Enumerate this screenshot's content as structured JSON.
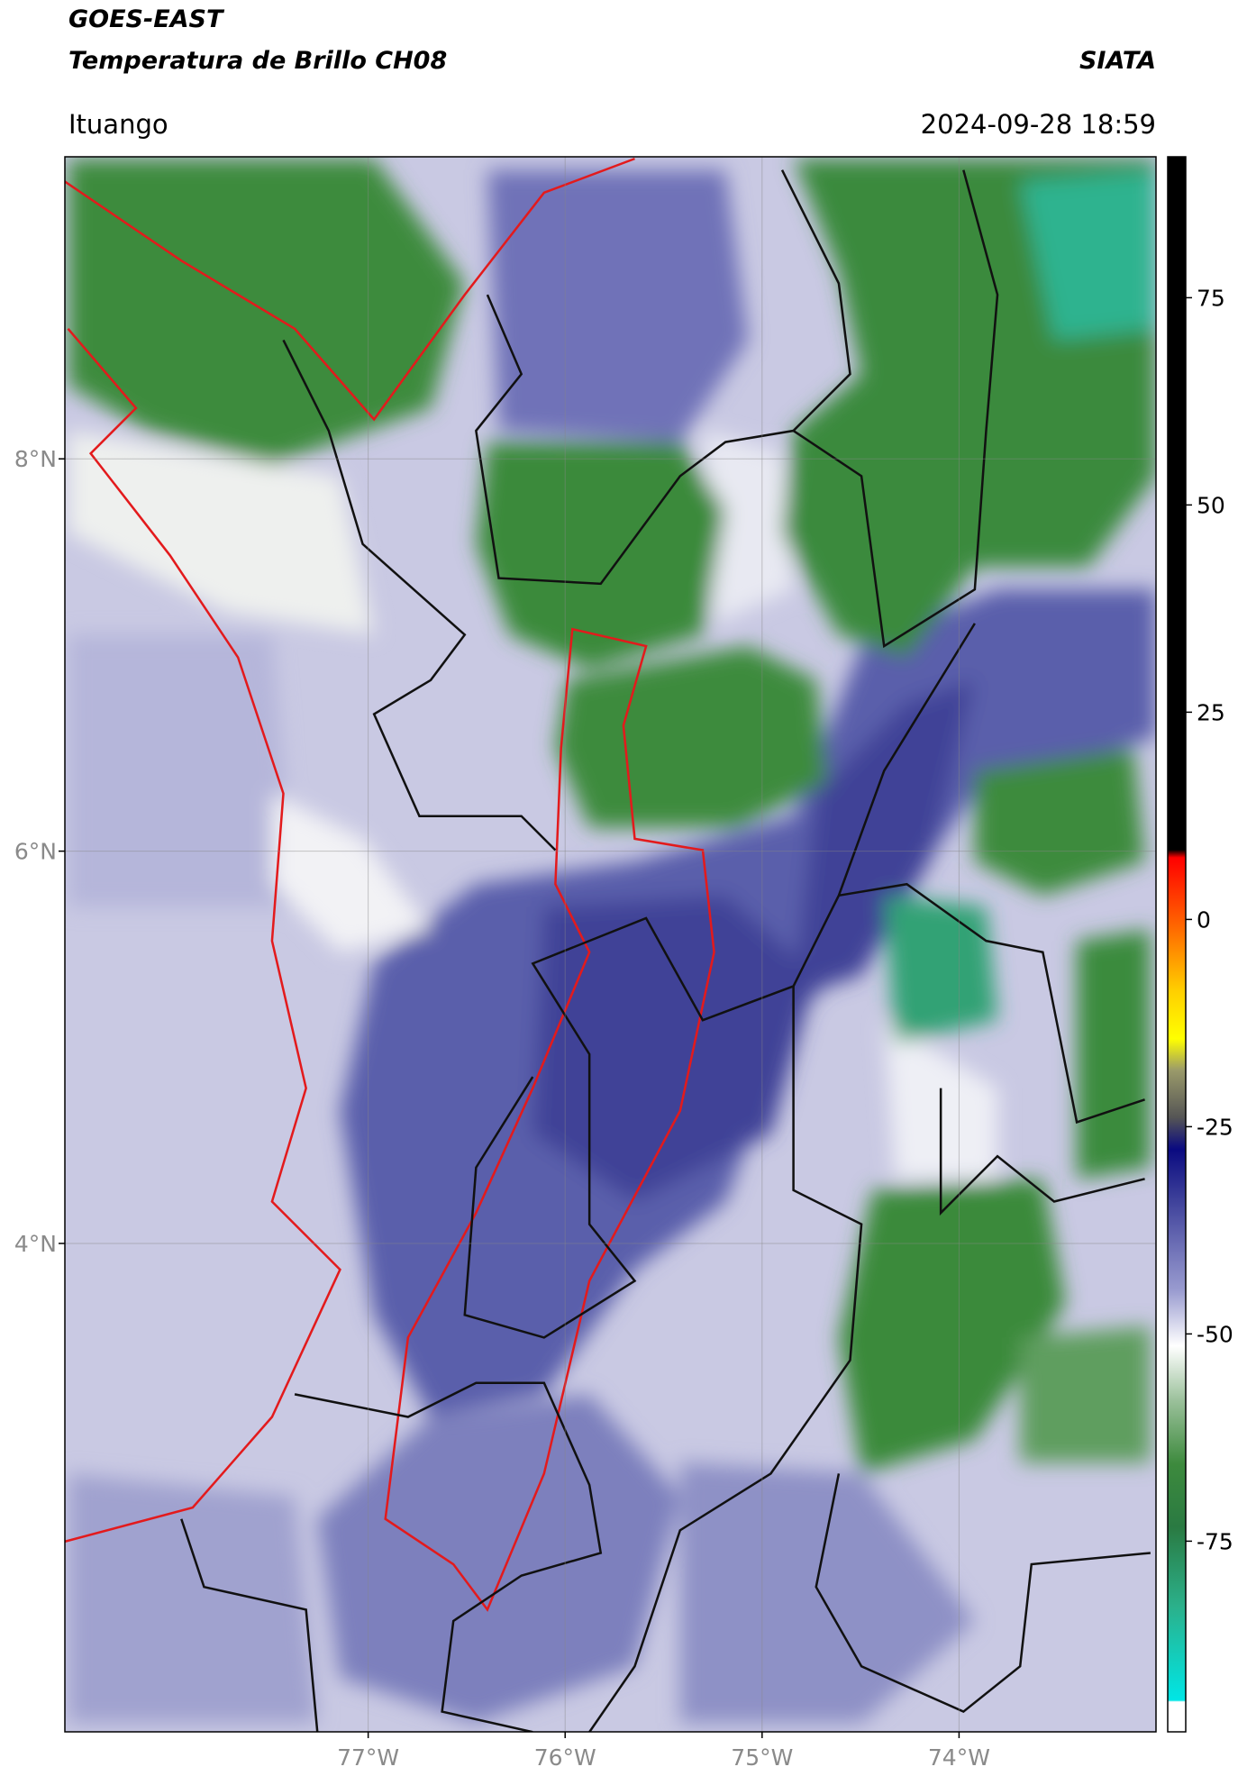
{
  "header": {
    "title": "GOES-EAST",
    "subtitle": "Temperatura de Brillo CH08",
    "source": "SIATA",
    "location": "Ituango",
    "timestamp": "2024-09-28 18:59"
  },
  "map": {
    "lon_range": [
      -78.54,
      -73.0
    ],
    "lat_range": [
      1.51,
      9.54
    ],
    "lat_ticks": [
      {
        "value": 8,
        "label": "8°N"
      },
      {
        "value": 6,
        "label": "6°N"
      },
      {
        "value": 4,
        "label": "4°N"
      }
    ],
    "lon_ticks": [
      {
        "value": -77,
        "label": "77°W"
      },
      {
        "value": -76,
        "label": "76°W"
      },
      {
        "value": -75,
        "label": "75°W"
      },
      {
        "value": -74,
        "label": "74°W"
      }
    ]
  },
  "colorbar": {
    "range": [
      -98,
      92
    ],
    "ticks": [
      75,
      50,
      25,
      0,
      -25,
      -50,
      -75
    ]
  }
}
